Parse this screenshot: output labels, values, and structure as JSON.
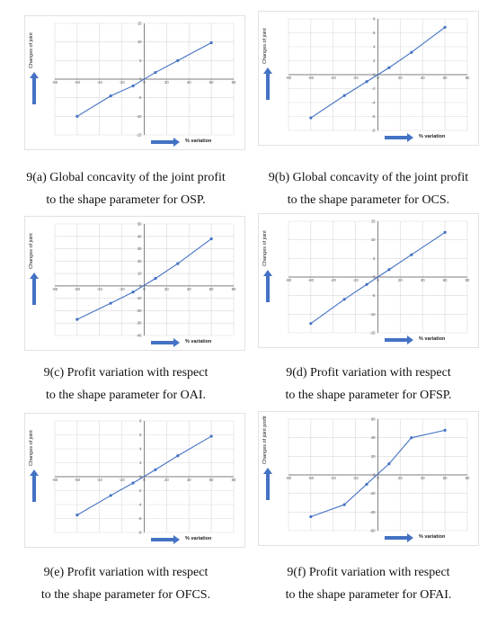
{
  "charts": [
    {
      "id": "a",
      "caption_line1": "9(a) Global concavity of the joint profit",
      "caption_line2": "to the shape parameter for OSP.",
      "ylabel": "Changes of joint",
      "xlabel": "% variation",
      "chart_data": {
        "type": "line",
        "x": [
          -60,
          -30,
          -10,
          10,
          30,
          60
        ],
        "y": [
          -10,
          -4.5,
          -1.8,
          1.8,
          5,
          9.8
        ],
        "xlim": [
          -80,
          80
        ],
        "xticks": [
          -80,
          -60,
          -40,
          -20,
          0,
          20,
          40,
          60,
          80
        ],
        "ylim": [
          -15,
          15
        ],
        "yticks": [
          -15,
          -10,
          -5,
          0,
          5,
          10,
          15
        ],
        "grid": true
      }
    },
    {
      "id": "b",
      "caption_line1": "9(b) Global concavity of the joint profit",
      "caption_line2": "to the shape parameter for OCS.",
      "ylabel": "Changes of joint",
      "xlabel": "% variation",
      "chart_data": {
        "type": "line",
        "x": [
          -60,
          -30,
          -10,
          10,
          30,
          60
        ],
        "y": [
          -6.2,
          -3,
          -1,
          1,
          3.2,
          6.8
        ],
        "xlim": [
          -80,
          80
        ],
        "xticks": [
          -80,
          -60,
          -40,
          -20,
          0,
          20,
          40,
          60,
          80
        ],
        "ylim": [
          -8,
          8
        ],
        "yticks": [
          -8,
          -6,
          -4,
          -2,
          0,
          2,
          4,
          6,
          8
        ],
        "grid": true
      }
    },
    {
      "id": "c",
      "caption_line1": "9(c) Profit variation with respect",
      "caption_line2": "to the shape parameter for OAI.",
      "ylabel": "Changes of joint",
      "xlabel": "% variation",
      "chart_data": {
        "type": "line",
        "x": [
          -60,
          -30,
          -10,
          10,
          30,
          60
        ],
        "y": [
          -27,
          -14,
          -5,
          6,
          18,
          38
        ],
        "xlim": [
          -80,
          80
        ],
        "xticks": [
          -80,
          -60,
          -40,
          -20,
          0,
          20,
          40,
          60,
          80
        ],
        "ylim": [
          -40,
          50
        ],
        "yticks": [
          -40,
          -30,
          -20,
          -10,
          0,
          10,
          20,
          30,
          40,
          50
        ],
        "grid": true
      }
    },
    {
      "id": "d",
      "caption_line1": "9(d) Profit variation with respect",
      "caption_line2": "to the shape parameter for OFSP.",
      "ylabel": "Changes of joint",
      "xlabel": "% variation",
      "chart_data": {
        "type": "line",
        "x": [
          -60,
          -30,
          -10,
          10,
          30,
          60
        ],
        "y": [
          -12.5,
          -6,
          -2,
          2,
          6,
          12
        ],
        "xlim": [
          -80,
          80
        ],
        "xticks": [
          -80,
          -60,
          -40,
          -20,
          0,
          20,
          40,
          60,
          80
        ],
        "ylim": [
          -15,
          15
        ],
        "yticks": [
          -15,
          -10,
          -5,
          0,
          5,
          10,
          15
        ],
        "grid": true
      }
    },
    {
      "id": "e",
      "caption_line1": "9(e) Profit variation with respect",
      "caption_line2": "to the shape parameter for OFCS.",
      "ylabel": "Changes of joint",
      "xlabel": "% variation",
      "chart_data": {
        "type": "line",
        "x": [
          -60,
          -30,
          -10,
          10,
          30,
          60
        ],
        "y": [
          -5.5,
          -2.7,
          -0.9,
          1,
          3,
          5.8
        ],
        "xlim": [
          -80,
          80
        ],
        "xticks": [
          -80,
          -60,
          -40,
          -20,
          0,
          20,
          40,
          60,
          80
        ],
        "ylim": [
          -8,
          8
        ],
        "yticks": [
          -8,
          -6,
          -4,
          -2,
          0,
          2,
          4,
          6,
          8
        ],
        "grid": true
      }
    },
    {
      "id": "f",
      "caption_line1": "9(f) Profit variation with respect",
      "caption_line2": "to the shape parameter for OFAI.",
      "ylabel": "Changes of joint profit",
      "xlabel": "% variation",
      "chart_data": {
        "type": "line",
        "x": [
          -60,
          -30,
          -10,
          10,
          30,
          60
        ],
        "y": [
          -45,
          -32,
          -10,
          12,
          40,
          48
        ],
        "xlim": [
          -80,
          80
        ],
        "xticks": [
          -80,
          -60,
          -40,
          -20,
          0,
          20,
          40,
          60,
          80
        ],
        "ylim": [
          -60,
          60
        ],
        "yticks": [
          -60,
          -40,
          -20,
          0,
          20,
          40,
          60
        ],
        "grid": true
      }
    }
  ],
  "colors": {
    "line": "#4472c4",
    "arrow": "#4472c4",
    "grid": "#d9d9d9",
    "axis": "#595959"
  }
}
